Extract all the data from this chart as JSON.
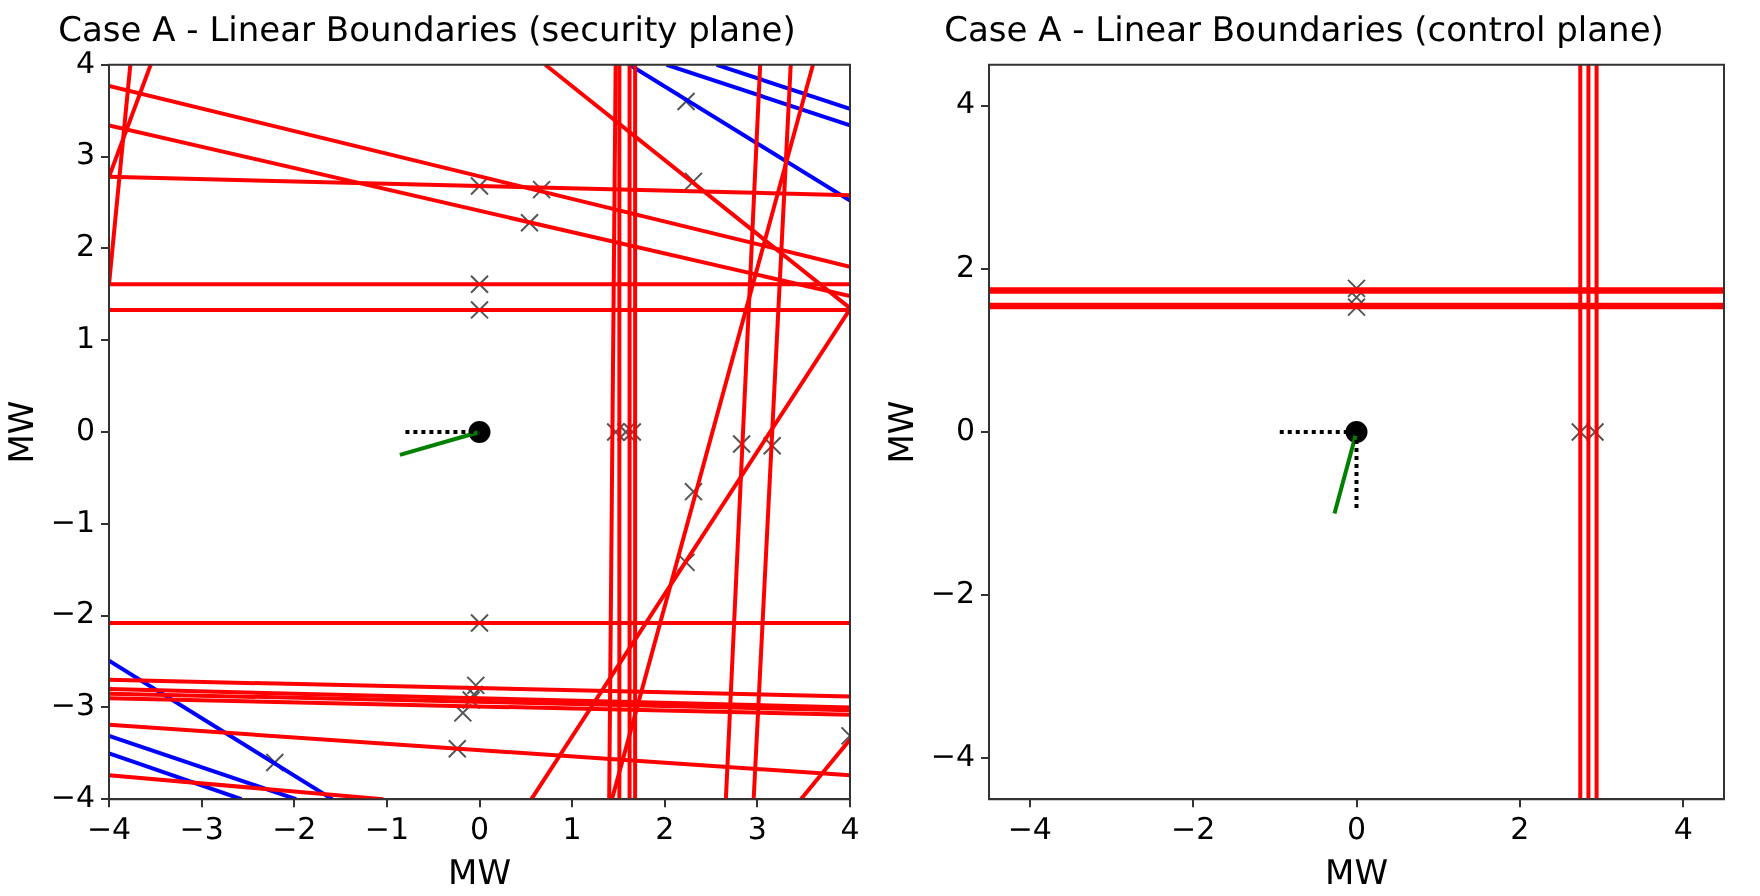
{
  "chart_data": [
    {
      "type": "line",
      "title": "Case A - Linear Boundaries (security plane)",
      "xlabel": "MW",
      "ylabel": "MW",
      "xlim": [
        -4,
        4
      ],
      "ylim": [
        -4,
        4
      ],
      "xticks": [
        -4,
        -3,
        -2,
        -1,
        0,
        1,
        2,
        3,
        4
      ],
      "yticks": [
        -4,
        -3,
        -2,
        -1,
        0,
        1,
        2,
        3,
        4
      ],
      "legend": false,
      "series": [
        {
          "color": "#ff0000",
          "x": [
            -4,
            4
          ],
          "values": [
            3.77,
            1.8
          ]
        },
        {
          "color": "#ff0000",
          "x": [
            -4,
            4
          ],
          "values": [
            3.34,
            1.48
          ]
        },
        {
          "color": "#ff0000",
          "x": [
            -4,
            4
          ],
          "values": [
            2.78,
            2.58
          ]
        },
        {
          "color": "#ff0000",
          "x": [
            -4,
            4
          ],
          "values": [
            1.61,
            1.61
          ]
        },
        {
          "color": "#ff0000",
          "x": [
            -4,
            4
          ],
          "values": [
            1.33,
            1.33
          ]
        },
        {
          "color": "#ff0000",
          "x": [
            -4,
            -3.77
          ],
          "values": [
            1.61,
            4
          ]
        },
        {
          "color": "#ff0000",
          "x": [
            -4,
            -3.55
          ],
          "values": [
            2.78,
            4
          ]
        },
        {
          "color": "#ff0000",
          "x": [
            1.4,
            1.47
          ],
          "values": [
            -4,
            4
          ]
        },
        {
          "color": "#ff0000",
          "x": [
            1.51,
            1.51
          ],
          "values": [
            -4,
            4
          ]
        },
        {
          "color": "#ff0000",
          "x": [
            1.62,
            1.62
          ],
          "values": [
            -4,
            4
          ]
        },
        {
          "color": "#ff0000",
          "x": [
            1.68,
            1.68
          ],
          "values": [
            -4,
            4
          ]
        },
        {
          "color": "#ff0000",
          "x": [
            0.71,
            4
          ],
          "values": [
            4,
            1.35
          ]
        },
        {
          "color": "#ff0000",
          "x": [
            2.66,
            3.03
          ],
          "values": [
            -4,
            4
          ]
        },
        {
          "color": "#ff0000",
          "x": [
            2.96,
            3.36
          ],
          "values": [
            -4,
            4
          ]
        },
        {
          "color": "#ff0000",
          "x": [
            0.56,
            4
          ],
          "values": [
            -4,
            1.34
          ]
        },
        {
          "color": "#ff0000",
          "x": [
            1.43,
            3.6
          ],
          "values": [
            -4,
            4
          ]
        },
        {
          "color": "#ff0000",
          "x": [
            3.47,
            4
          ],
          "values": [
            -4,
            -3.35
          ]
        },
        {
          "color": "#ff0000",
          "x": [
            -4,
            4
          ],
          "values": [
            -2.08,
            -2.08
          ]
        },
        {
          "color": "#ff0000",
          "x": [
            -4,
            4
          ],
          "values": [
            -2.7,
            -2.88
          ]
        },
        {
          "color": "#ff0000",
          "x": [
            -4,
            4
          ],
          "values": [
            -2.8,
            -3
          ]
        },
        {
          "color": "#ff0000",
          "x": [
            -4,
            4
          ],
          "values": [
            -2.85,
            -3.03
          ]
        },
        {
          "color": "#ff0000",
          "x": [
            -4,
            4
          ],
          "values": [
            -2.9,
            -3.08
          ]
        },
        {
          "color": "#ff0000",
          "x": [
            -4,
            4
          ],
          "values": [
            -3.19,
            -3.74
          ]
        },
        {
          "color": "#ff0000",
          "x": [
            -4,
            -1.04
          ],
          "values": [
            -3.74,
            -4
          ]
        },
        {
          "color": "#0000ff",
          "x": [
            1.62,
            4
          ],
          "values": [
            4,
            2.52
          ]
        },
        {
          "color": "#0000ff",
          "x": [
            2.02,
            4
          ],
          "values": [
            4,
            3.34
          ]
        },
        {
          "color": "#0000ff",
          "x": [
            2.56,
            4
          ],
          "values": [
            4,
            3.52
          ]
        },
        {
          "color": "#0000ff",
          "x": [
            -4,
            -1.59
          ],
          "values": [
            -2.49,
            -4
          ]
        },
        {
          "color": "#0000ff",
          "x": [
            -4,
            -1.98
          ],
          "values": [
            -3.31,
            -4
          ]
        },
        {
          "color": "#0000ff",
          "x": [
            -4,
            -2.57
          ],
          "values": [
            -3.5,
            -4
          ]
        },
        {
          "color": "#000000",
          "line_style": "dotted",
          "x": [
            -0.8,
            0
          ],
          "values": [
            0,
            0
          ]
        },
        {
          "color": "#008000",
          "x": [
            -0.86,
            0
          ],
          "values": [
            -0.25,
            0
          ]
        },
        {
          "type": "scatter",
          "marker": "cross",
          "color": "#555555",
          "x": [
            0,
            0.67,
            0.54,
            0,
            0,
            2.23,
            2.31,
            1.47,
            1.58,
            1.65,
            2.83,
            3.16,
            2.31,
            2.23,
            0,
            -0.04,
            -0.06,
            -0.09,
            -0.18,
            -0.24,
            -2.21,
            4
          ],
          "values": [
            2.68,
            2.64,
            2.28,
            1.61,
            1.33,
            3.6,
            2.73,
            0,
            0,
            0,
            -0.13,
            -0.15,
            -0.65,
            -1.42,
            -2.08,
            -2.76,
            -2.86,
            -2.92,
            -3.06,
            -3.45,
            -3.6,
            -3.31
          ]
        },
        {
          "type": "scatter",
          "marker": "circle",
          "color": "#000000",
          "x": [
            0
          ],
          "values": [
            0
          ]
        }
      ]
    },
    {
      "type": "line",
      "title": "Case A - Linear Boundaries (control plane)",
      "xlabel": "MW",
      "ylabel": "MW",
      "xlim": [
        -4.5,
        4.5
      ],
      "ylim": [
        -4.5,
        4.5
      ],
      "xticks": [
        -4,
        -2,
        0,
        2,
        4
      ],
      "yticks": [
        -4,
        -2,
        0,
        2,
        4
      ],
      "legend": false,
      "series": [
        {
          "color": "#ff0000",
          "x": [
            -4.5,
            4.5
          ],
          "values": [
            1.72,
            1.72
          ]
        },
        {
          "color": "#ff0000",
          "x": [
            -4.5,
            4.5
          ],
          "values": [
            1.75,
            1.75
          ]
        },
        {
          "color": "#ff0000",
          "x": [
            -4.5,
            4.5
          ],
          "values": [
            1.53,
            1.53
          ]
        },
        {
          "color": "#ff0000",
          "x": [
            -4.5,
            4.5
          ],
          "values": [
            1.56,
            1.56
          ]
        },
        {
          "color": "#ff0000",
          "x": [
            2.74,
            2.74
          ],
          "values": [
            -4.5,
            4.5
          ]
        },
        {
          "color": "#ff0000",
          "x": [
            2.84,
            2.84
          ],
          "values": [
            -4.5,
            4.5
          ]
        },
        {
          "color": "#ff0000",
          "x": [
            2.94,
            2.94
          ],
          "values": [
            -4.5,
            4.5
          ]
        },
        {
          "color": "#000000",
          "line_style": "dotted",
          "x": [
            -0.94,
            0
          ],
          "values": [
            0,
            0
          ]
        },
        {
          "color": "#000000",
          "line_style": "dotted",
          "x": [
            0,
            0
          ],
          "values": [
            0,
            -0.96
          ]
        },
        {
          "color": "#008000",
          "x": [
            -0.27,
            0
          ],
          "values": [
            -1,
            0
          ]
        },
        {
          "type": "scatter",
          "marker": "cross",
          "color": "#555555",
          "x": [
            0,
            0,
            0,
            2.74,
            2.92
          ],
          "values": [
            1.76,
            1.65,
            1.53,
            0,
            0
          ]
        },
        {
          "type": "scatter",
          "marker": "circle",
          "color": "#000000",
          "x": [
            0
          ],
          "values": [
            0
          ]
        }
      ]
    }
  ]
}
